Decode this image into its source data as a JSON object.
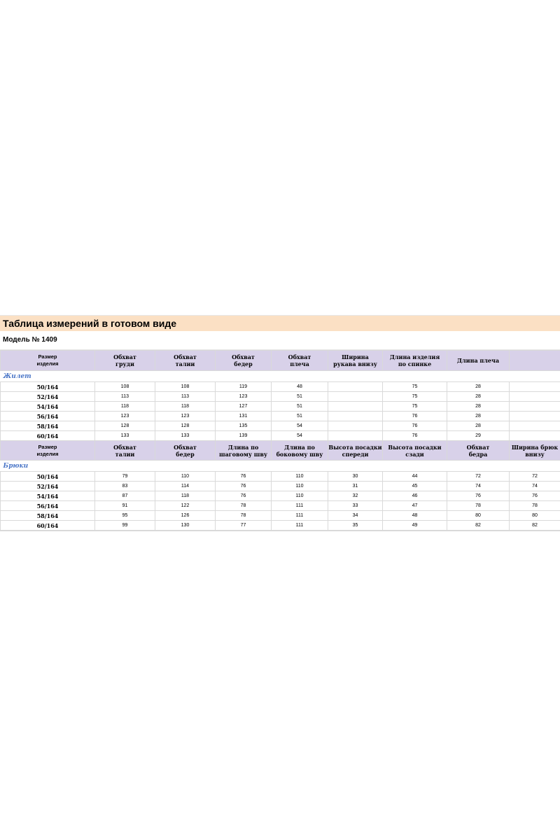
{
  "title": "Таблица измерений в готовом виде",
  "model": "Модель № 1409",
  "vest": {
    "section_label": "Жилет",
    "header_size_label": [
      "Размер",
      "изделия"
    ],
    "headers": [
      [
        "Обхват",
        "груди"
      ],
      [
        "Обхват",
        "талии"
      ],
      [
        "Обхват",
        "бедер"
      ],
      [
        "Обхват",
        "плеча"
      ],
      [
        "Ширина",
        "рукава внизу"
      ],
      [
        "Длина изделия",
        "по спинке"
      ],
      [
        "Длина плеча",
        ""
      ],
      [
        "",
        ""
      ]
    ],
    "rows": [
      {
        "size": "50/164",
        "values": [
          "108",
          "108",
          "119",
          "48",
          "",
          "75",
          "28",
          ""
        ]
      },
      {
        "size": "52/164",
        "values": [
          "113",
          "113",
          "123",
          "51",
          "",
          "75",
          "28",
          ""
        ]
      },
      {
        "size": "54/164",
        "values": [
          "118",
          "118",
          "127",
          "51",
          "",
          "75",
          "28",
          ""
        ]
      },
      {
        "size": "56/164",
        "values": [
          "123",
          "123",
          "131",
          "51",
          "",
          "76",
          "28",
          ""
        ]
      },
      {
        "size": "58/164",
        "values": [
          "128",
          "128",
          "135",
          "54",
          "",
          "76",
          "28",
          ""
        ]
      },
      {
        "size": "60/164",
        "values": [
          "133",
          "133",
          "139",
          "54",
          "",
          "76",
          "29",
          ""
        ]
      }
    ]
  },
  "trousers": {
    "section_label": "Брюки",
    "header_size_label": [
      "Размер",
      "изделия"
    ],
    "headers": [
      [
        "Обхват",
        "талии"
      ],
      [
        "Обхват",
        "бедер"
      ],
      [
        "Длина по",
        "шаговому шву"
      ],
      [
        "Длина по",
        "боковому шву"
      ],
      [
        "Высота посадки",
        "спереди"
      ],
      [
        "Высота посадки",
        "сзади"
      ],
      [
        "Обхват",
        "бедра"
      ],
      [
        "Ширина брюк",
        "внизу"
      ]
    ],
    "rows": [
      {
        "size": "50/164",
        "values": [
          "79",
          "110",
          "76",
          "110",
          "30",
          "44",
          "72",
          "72"
        ]
      },
      {
        "size": "52/164",
        "values": [
          "83",
          "114",
          "76",
          "110",
          "31",
          "45",
          "74",
          "74"
        ]
      },
      {
        "size": "54/164",
        "values": [
          "87",
          "118",
          "76",
          "110",
          "32",
          "46",
          "76",
          "76"
        ]
      },
      {
        "size": "56/164",
        "values": [
          "91",
          "122",
          "78",
          "111",
          "33",
          "47",
          "78",
          "78"
        ]
      },
      {
        "size": "58/164",
        "values": [
          "95",
          "126",
          "78",
          "111",
          "34",
          "48",
          "80",
          "80"
        ]
      },
      {
        "size": "60/164",
        "values": [
          "99",
          "130",
          "77",
          "111",
          "35",
          "49",
          "82",
          "82"
        ]
      }
    ]
  }
}
